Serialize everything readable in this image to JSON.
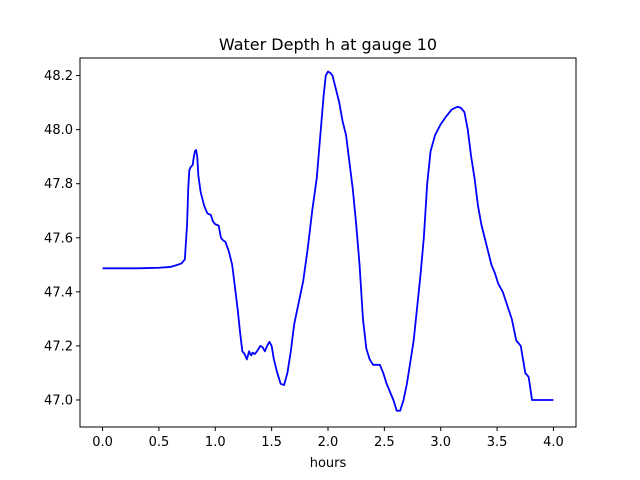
{
  "chart_data": {
    "type": "line",
    "title": "Water Depth h at gauge 10",
    "xlabel": "hours",
    "ylabel": "",
    "xlim": [
      -0.2,
      4.2
    ],
    "ylim": [
      46.9,
      48.265
    ],
    "xticks": [
      0.0,
      0.5,
      1.0,
      1.5,
      2.0,
      2.5,
      3.0,
      3.5,
      4.0
    ],
    "xtick_labels": [
      "0.0",
      "0.5",
      "1.0",
      "1.5",
      "2.0",
      "2.5",
      "3.0",
      "3.5",
      "4.0"
    ],
    "yticks": [
      47.0,
      47.2,
      47.4,
      47.6,
      47.8,
      48.0,
      48.2
    ],
    "ytick_labels": [
      "47.0",
      "47.2",
      "47.4",
      "47.6",
      "47.8",
      "48.0",
      "48.2"
    ],
    "grid": false,
    "legend": "none",
    "series": [
      {
        "color": "#0000ff",
        "x": [
          0.0,
          0.1,
          0.2,
          0.3,
          0.4,
          0.5,
          0.6,
          0.65,
          0.7,
          0.73,
          0.75,
          0.76,
          0.77,
          0.78,
          0.8,
          0.81,
          0.82,
          0.83,
          0.84,
          0.85,
          0.87,
          0.9,
          0.93,
          0.96,
          0.98,
          1.0,
          1.03,
          1.05,
          1.07,
          1.09,
          1.12,
          1.15,
          1.18,
          1.2,
          1.22,
          1.24,
          1.26,
          1.28,
          1.3,
          1.31,
          1.32,
          1.33,
          1.35,
          1.37,
          1.4,
          1.42,
          1.44,
          1.46,
          1.48,
          1.5,
          1.52,
          1.55,
          1.58,
          1.61,
          1.64,
          1.67,
          1.7,
          1.74,
          1.78,
          1.82,
          1.86,
          1.9,
          1.94,
          1.96,
          1.98,
          2.0,
          2.02,
          2.04,
          2.07,
          2.1,
          2.13,
          2.16,
          2.19,
          2.22,
          2.25,
          2.28,
          2.31,
          2.34,
          2.37,
          2.4,
          2.43,
          2.46,
          2.49,
          2.52,
          2.55,
          2.58,
          2.61,
          2.64,
          2.67,
          2.7,
          2.73,
          2.76,
          2.79,
          2.82,
          2.85,
          2.88,
          2.91,
          2.95,
          3.0,
          3.05,
          3.1,
          3.15,
          3.18,
          3.21,
          3.24,
          3.27,
          3.3,
          3.33,
          3.36,
          3.39,
          3.42,
          3.45,
          3.48,
          3.51,
          3.55,
          3.59,
          3.63,
          3.67,
          3.71,
          3.75,
          3.78,
          3.81,
          3.84,
          3.87,
          3.9,
          3.93,
          3.96,
          3.98,
          4.0
        ],
        "values": [
          47.487,
          47.487,
          47.487,
          47.487,
          47.488,
          47.489,
          47.492,
          47.498,
          47.505,
          47.52,
          47.65,
          47.78,
          47.85,
          47.86,
          47.87,
          47.9,
          47.92,
          47.925,
          47.9,
          47.83,
          47.77,
          47.72,
          47.69,
          47.685,
          47.66,
          47.65,
          47.645,
          47.6,
          47.59,
          47.585,
          47.55,
          47.5,
          47.4,
          47.33,
          47.25,
          47.18,
          47.17,
          47.15,
          47.18,
          47.17,
          47.165,
          47.175,
          47.17,
          47.18,
          47.2,
          47.195,
          47.18,
          47.2,
          47.215,
          47.2,
          47.15,
          47.1,
          47.06,
          47.055,
          47.1,
          47.18,
          47.28,
          47.36,
          47.44,
          47.56,
          47.7,
          47.82,
          48.02,
          48.12,
          48.2,
          48.215,
          48.21,
          48.2,
          48.15,
          48.1,
          48.03,
          47.98,
          47.88,
          47.78,
          47.65,
          47.5,
          47.3,
          47.19,
          47.15,
          47.13,
          47.13,
          47.13,
          47.1,
          47.06,
          47.03,
          47.0,
          46.96,
          46.96,
          47.0,
          47.06,
          47.14,
          47.22,
          47.34,
          47.46,
          47.6,
          47.8,
          47.92,
          47.98,
          48.02,
          48.05,
          48.075,
          48.085,
          48.08,
          48.065,
          48.0,
          47.9,
          47.82,
          47.72,
          47.65,
          47.6,
          47.55,
          47.5,
          47.47,
          47.43,
          47.4,
          47.35,
          47.3,
          47.22,
          47.2,
          47.1,
          47.085,
          47.0,
          47.0,
          47.0,
          47.0,
          47.0,
          47.0,
          47.0,
          47.0
        ]
      }
    ]
  }
}
